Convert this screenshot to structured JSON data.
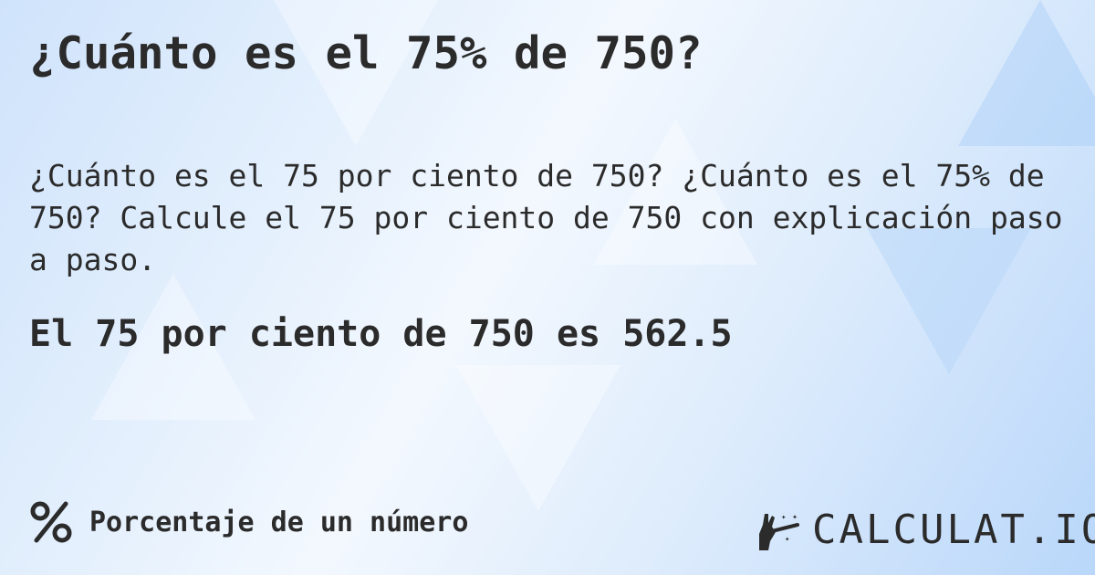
{
  "title": "¿Cuánto es el 75% de 750?",
  "description": "¿Cuánto es el 75 por ciento de 750? ¿Cuánto es el 75% de 750? Calcule el 75 por ciento de 750 con explicación paso a paso.",
  "result": "El 75 por ciento de 750 es 562.5",
  "footer": {
    "category_icon": "percent-icon",
    "category_label": "Porcentaje de un número"
  },
  "logo": {
    "text": "CALCULAT.IO",
    "icon": "magic-wand-hand-icon"
  },
  "colors": {
    "text": "#2b2b2b",
    "background": "#dcebfc"
  }
}
